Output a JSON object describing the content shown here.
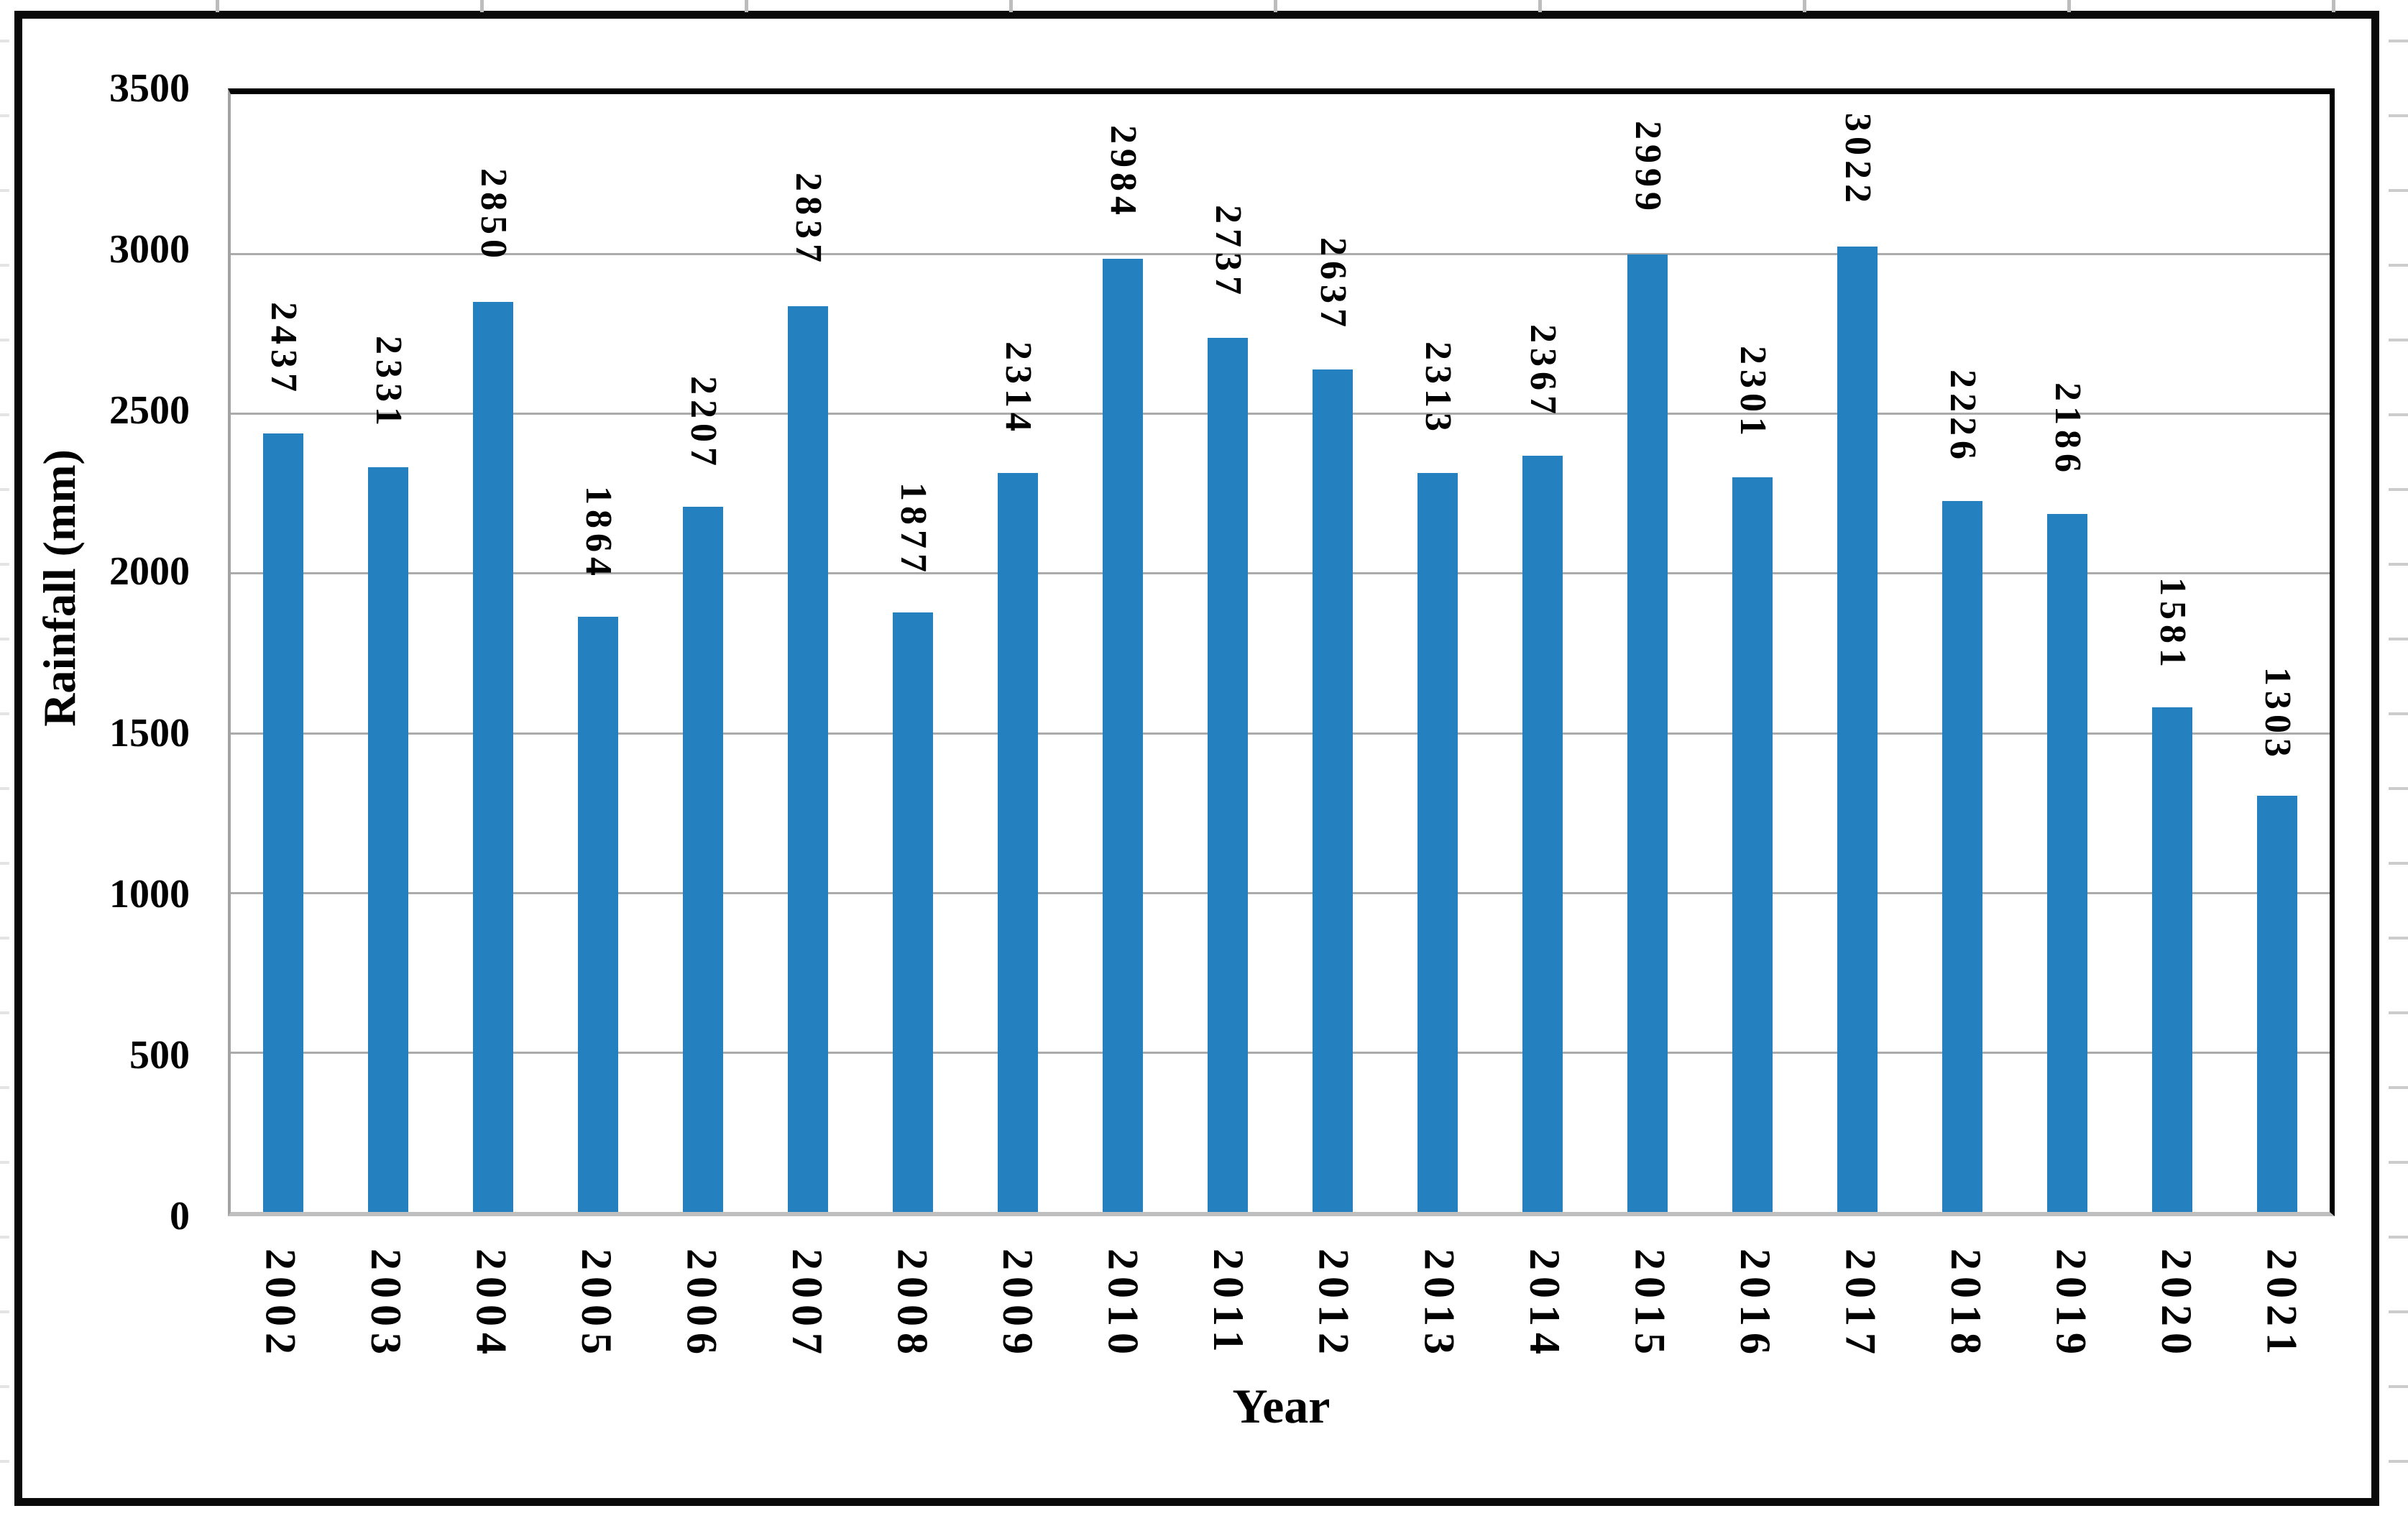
{
  "figure": {
    "type_label": "annual rainfall bar chart",
    "frame_color": "#0a0a0a",
    "background": "#ffffff"
  },
  "chart_data": {
    "type": "bar",
    "title": "",
    "categories": [
      "2002",
      "2003",
      "2004",
      "2005",
      "2006",
      "2007",
      "2008",
      "2009",
      "2010",
      "2011",
      "2012",
      "2013",
      "2014",
      "2015",
      "2016",
      "2017",
      "2018",
      "2019",
      "2020",
      "2021"
    ],
    "values": [
      2437,
      2331,
      2850,
      1864,
      2207,
      2837,
      1877,
      2314,
      2984,
      2737,
      2637,
      2313,
      2367,
      2999,
      2301,
      3022,
      2226,
      2186,
      1581,
      1303
    ],
    "xlabel": "Year",
    "ylabel": "Rainfall (mm)",
    "ylim": [
      0,
      3500
    ],
    "ytick_interval": 500,
    "ytick_labels": [
      "3500",
      "3000",
      "2500",
      "2000",
      "1500",
      "1000",
      "500",
      "0"
    ],
    "grid": true,
    "legend": "none",
    "bar_color": "#2580C0",
    "gridline_color": "#ababab",
    "data_label_rotation_deg": 90,
    "x_tick_rotation_deg": 90
  }
}
